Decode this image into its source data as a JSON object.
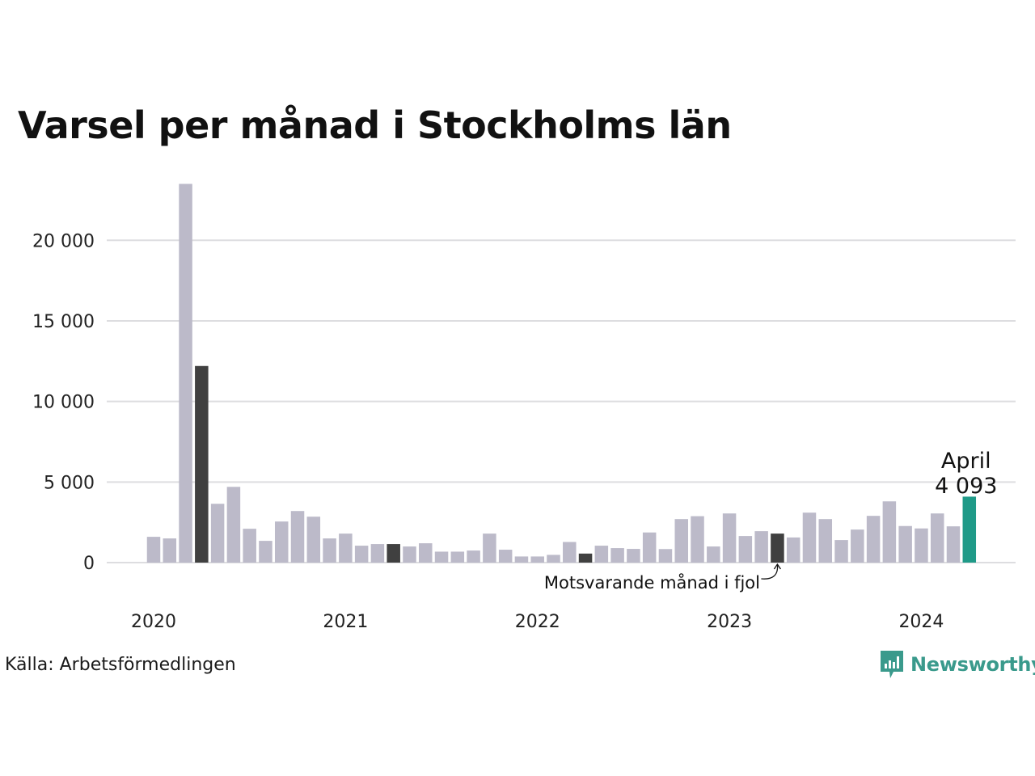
{
  "chart_data": {
    "type": "bar",
    "title": "Varsel per månad i Stockholms län",
    "x_tick_labels": [
      "2020",
      "2021",
      "2022",
      "2023",
      "2024"
    ],
    "y_tick_labels": [
      "0",
      "5 000",
      "10 000",
      "15 000",
      "20 000"
    ],
    "y_ticks": [
      0,
      5000,
      10000,
      15000,
      20000
    ],
    "ylim": [
      0,
      24000
    ],
    "grid": true,
    "months": [
      "2020-01",
      "2020-02",
      "2020-03",
      "2020-04",
      "2020-05",
      "2020-06",
      "2020-07",
      "2020-08",
      "2020-09",
      "2020-10",
      "2020-11",
      "2020-12",
      "2021-01",
      "2021-02",
      "2021-03",
      "2021-04",
      "2021-05",
      "2021-06",
      "2021-07",
      "2021-08",
      "2021-09",
      "2021-10",
      "2021-11",
      "2021-12",
      "2022-01",
      "2022-02",
      "2022-03",
      "2022-04",
      "2022-05",
      "2022-06",
      "2022-07",
      "2022-08",
      "2022-09",
      "2022-10",
      "2022-11",
      "2022-12",
      "2023-01",
      "2023-02",
      "2023-03",
      "2023-04",
      "2023-05",
      "2023-06",
      "2023-07",
      "2023-08",
      "2023-09",
      "2023-10",
      "2023-11",
      "2023-12",
      "2024-01",
      "2024-02",
      "2024-03",
      "2024-04"
    ],
    "values": [
      1600,
      1500,
      23500,
      12200,
      3650,
      4700,
      2100,
      1350,
      2550,
      3200,
      2850,
      1500,
      1800,
      1050,
      1150,
      1150,
      1000,
      1200,
      680,
      680,
      750,
      1800,
      800,
      380,
      380,
      480,
      1280,
      560,
      1050,
      900,
      850,
      1870,
      840,
      2700,
      2880,
      1000,
      3050,
      1650,
      1950,
      1800,
      1560,
      3100,
      2700,
      1400,
      2050,
      2900,
      3800,
      2270,
      2120,
      3050,
      2250,
      4093
    ],
    "highlighted_months": [
      "2020-04",
      "2021-04",
      "2022-04",
      "2023-04"
    ],
    "current_month": "2024-04",
    "colors": {
      "default_bar": "#bcbac9",
      "same_month_previous_years": "#404040",
      "current_bar": "#1f9a88",
      "gridline": "#dddde0"
    },
    "callout": {
      "month_label": "April",
      "value_label": "4 093"
    },
    "annotation": "Motsvarande månad i fjol"
  },
  "footer": {
    "source": "Källa: Arbetsförmedlingen",
    "brand": "Newsworthy",
    "brand_icon": "newsworthy-logo-icon",
    "brand_color": "#3a9a8c"
  }
}
